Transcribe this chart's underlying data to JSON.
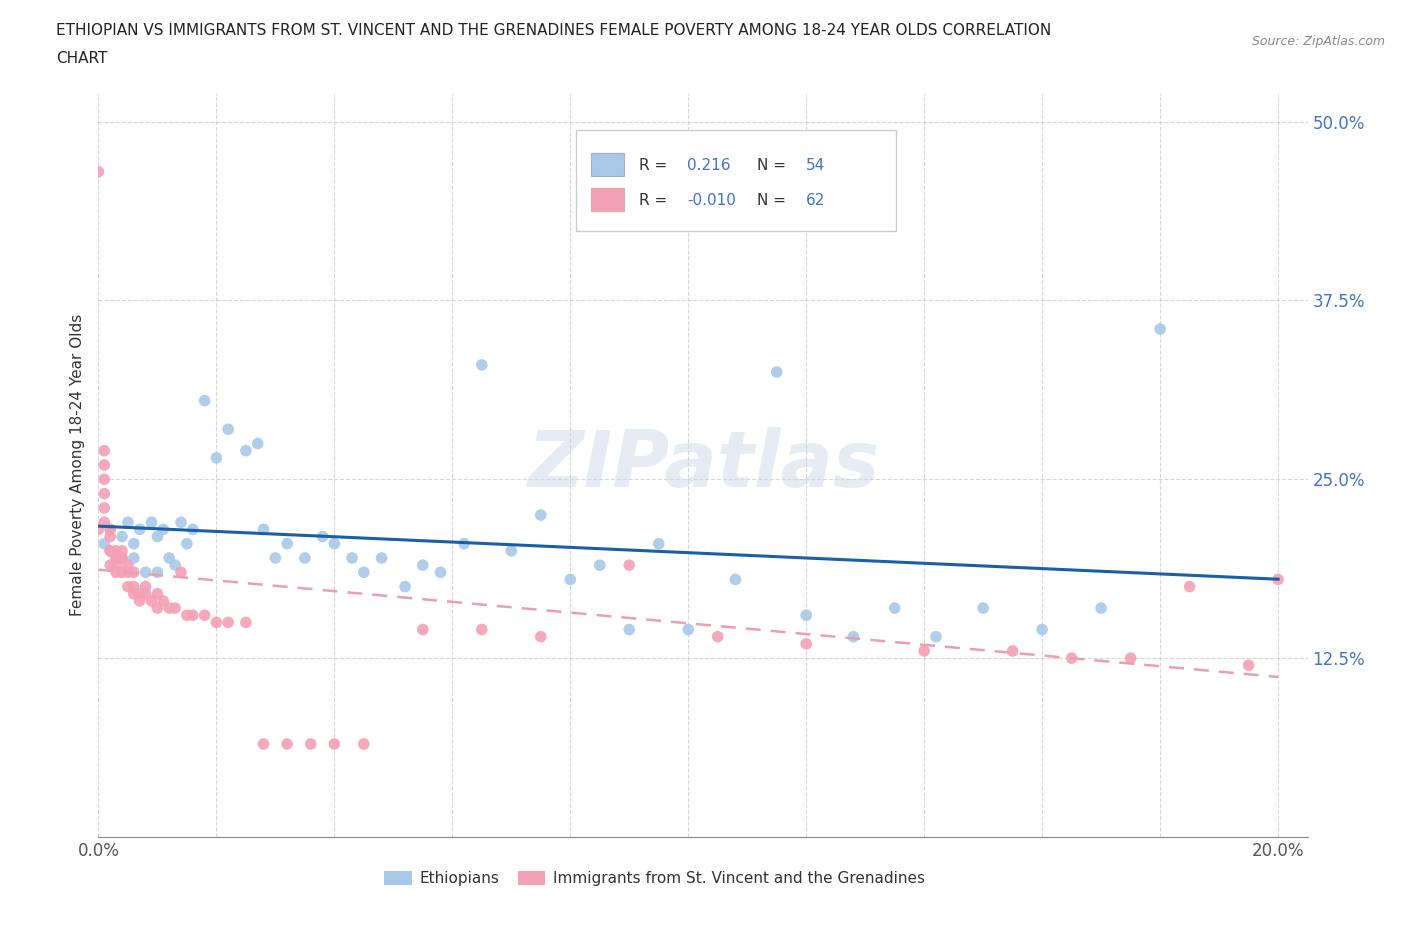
{
  "title_line1": "ETHIOPIAN VS IMMIGRANTS FROM ST. VINCENT AND THE GRENADINES FEMALE POVERTY AMONG 18-24 YEAR OLDS CORRELATION",
  "title_line2": "CHART",
  "source_text": "Source: ZipAtlas.com",
  "ylabel": "Female Poverty Among 18-24 Year Olds",
  "watermark": "ZIPatlas",
  "blue_R": 0.216,
  "blue_N": 54,
  "pink_R": -0.01,
  "pink_N": 62,
  "blue_color": "#a8c8e8",
  "pink_color": "#f4a0b5",
  "blue_line_color": "#1a5fa8",
  "pink_line_color": "#e8a0b0",
  "xlim": [
    0.0,
    0.205
  ],
  "ylim": [
    0.0,
    0.52
  ],
  "blue_scatter_x": [
    0.001,
    0.002,
    0.003,
    0.004,
    0.005,
    0.006,
    0.006,
    0.007,
    0.008,
    0.009,
    0.01,
    0.01,
    0.011,
    0.012,
    0.013,
    0.014,
    0.015,
    0.016,
    0.018,
    0.02,
    0.022,
    0.025,
    0.027,
    0.028,
    0.03,
    0.032,
    0.035,
    0.038,
    0.04,
    0.043,
    0.045,
    0.048,
    0.052,
    0.055,
    0.058,
    0.062,
    0.065,
    0.07,
    0.075,
    0.08,
    0.085,
    0.09,
    0.095,
    0.1,
    0.108,
    0.115,
    0.12,
    0.128,
    0.135,
    0.142,
    0.15,
    0.16,
    0.17,
    0.18
  ],
  "blue_scatter_y": [
    0.205,
    0.215,
    0.195,
    0.21,
    0.22,
    0.205,
    0.195,
    0.215,
    0.185,
    0.22,
    0.21,
    0.185,
    0.215,
    0.195,
    0.19,
    0.22,
    0.205,
    0.215,
    0.305,
    0.265,
    0.285,
    0.27,
    0.275,
    0.215,
    0.195,
    0.205,
    0.195,
    0.21,
    0.205,
    0.195,
    0.185,
    0.195,
    0.175,
    0.19,
    0.185,
    0.205,
    0.33,
    0.2,
    0.225,
    0.18,
    0.19,
    0.145,
    0.205,
    0.145,
    0.18,
    0.325,
    0.155,
    0.14,
    0.16,
    0.14,
    0.16,
    0.145,
    0.16,
    0.355
  ],
  "pink_scatter_x": [
    0.0,
    0.0,
    0.001,
    0.001,
    0.001,
    0.001,
    0.001,
    0.001,
    0.002,
    0.002,
    0.002,
    0.002,
    0.002,
    0.003,
    0.003,
    0.003,
    0.003,
    0.004,
    0.004,
    0.004,
    0.004,
    0.005,
    0.005,
    0.005,
    0.006,
    0.006,
    0.006,
    0.007,
    0.007,
    0.008,
    0.008,
    0.009,
    0.01,
    0.01,
    0.011,
    0.012,
    0.013,
    0.014,
    0.015,
    0.016,
    0.018,
    0.02,
    0.022,
    0.025,
    0.028,
    0.032,
    0.036,
    0.04,
    0.045,
    0.055,
    0.065,
    0.075,
    0.09,
    0.105,
    0.12,
    0.14,
    0.155,
    0.165,
    0.175,
    0.185,
    0.195,
    0.2
  ],
  "pink_scatter_y": [
    0.465,
    0.215,
    0.27,
    0.26,
    0.25,
    0.24,
    0.23,
    0.22,
    0.215,
    0.21,
    0.2,
    0.2,
    0.19,
    0.2,
    0.195,
    0.19,
    0.185,
    0.2,
    0.195,
    0.195,
    0.185,
    0.19,
    0.185,
    0.175,
    0.185,
    0.175,
    0.17,
    0.17,
    0.165,
    0.175,
    0.17,
    0.165,
    0.17,
    0.16,
    0.165,
    0.16,
    0.16,
    0.185,
    0.155,
    0.155,
    0.155,
    0.15,
    0.15,
    0.15,
    0.065,
    0.065,
    0.065,
    0.065,
    0.065,
    0.145,
    0.145,
    0.14,
    0.19,
    0.14,
    0.135,
    0.13,
    0.13,
    0.125,
    0.125,
    0.175,
    0.12,
    0.18
  ],
  "legend_labels": [
    "Ethiopians",
    "Immigrants from St. Vincent and the Grenadines"
  ]
}
